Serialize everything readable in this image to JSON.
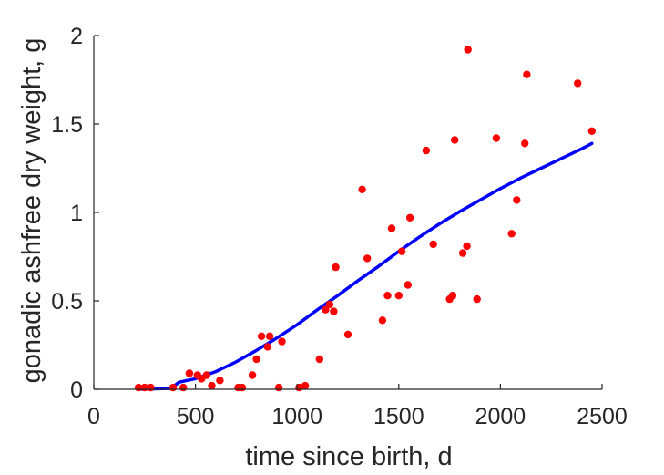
{
  "chart_data": {
    "type": "scatter",
    "xlabel": "time since birth, d",
    "ylabel": "gonadic ashfree dry weight, g",
    "xlim": [
      0,
      2500
    ],
    "ylim": [
      0,
      2
    ],
    "xticks": [
      0,
      500,
      1000,
      1500,
      2000,
      2500
    ],
    "yticks": [
      0,
      0.5,
      1,
      1.5,
      2
    ],
    "xtick_labels": [
      "0",
      "500",
      "1000",
      "1500",
      "2000",
      "2500"
    ],
    "ytick_labels": [
      "0",
      "0.5",
      "1",
      "1.5",
      "2"
    ],
    "grid": false,
    "box": false,
    "colors": {
      "points": "#ff0000",
      "curve": "#0000ff",
      "axes": "#262626"
    },
    "series": [
      {
        "kind": "points",
        "points": [
          [
            220,
            0.01
          ],
          [
            250,
            0.01
          ],
          [
            280,
            0.01
          ],
          [
            390,
            0.01
          ],
          [
            440,
            0.01
          ],
          [
            470,
            0.09
          ],
          [
            510,
            0.08
          ],
          [
            530,
            0.06
          ],
          [
            555,
            0.08
          ],
          [
            580,
            0.02
          ],
          [
            620,
            0.05
          ],
          [
            710,
            0.01
          ],
          [
            730,
            0.01
          ],
          [
            780,
            0.08
          ],
          [
            800,
            0.17
          ],
          [
            825,
            0.3
          ],
          [
            855,
            0.24
          ],
          [
            865,
            0.3
          ],
          [
            910,
            0.01
          ],
          [
            925,
            0.27
          ],
          [
            1010,
            0.01
          ],
          [
            1040,
            0.02
          ],
          [
            1110,
            0.17
          ],
          [
            1140,
            0.45
          ],
          [
            1160,
            0.48
          ],
          [
            1180,
            0.44
          ],
          [
            1190,
            0.69
          ],
          [
            1250,
            0.31
          ],
          [
            1320,
            1.13
          ],
          [
            1345,
            0.74
          ],
          [
            1420,
            0.39
          ],
          [
            1445,
            0.53
          ],
          [
            1465,
            0.91
          ],
          [
            1500,
            0.53
          ],
          [
            1515,
            0.78
          ],
          [
            1545,
            0.59
          ],
          [
            1555,
            0.97
          ],
          [
            1635,
            1.35
          ],
          [
            1670,
            0.82
          ],
          [
            1750,
            0.51
          ],
          [
            1765,
            0.53
          ],
          [
            1775,
            1.41
          ],
          [
            1815,
            0.77
          ],
          [
            1835,
            0.81
          ],
          [
            1840,
            1.92
          ],
          [
            1885,
            0.51
          ],
          [
            1980,
            1.42
          ],
          [
            2055,
            0.88
          ],
          [
            2080,
            1.07
          ],
          [
            2120,
            1.39
          ],
          [
            2130,
            1.78
          ],
          [
            2380,
            1.73
          ],
          [
            2450,
            1.46
          ]
        ]
      },
      {
        "kind": "curve",
        "points": [
          [
            215,
            0
          ],
          [
            380,
            0.005
          ],
          [
            420,
            0.04
          ],
          [
            500,
            0.06
          ],
          [
            600,
            0.1
          ],
          [
            700,
            0.155
          ],
          [
            800,
            0.22
          ],
          [
            900,
            0.29
          ],
          [
            1000,
            0.365
          ],
          [
            1100,
            0.45
          ],
          [
            1200,
            0.53
          ],
          [
            1300,
            0.615
          ],
          [
            1400,
            0.695
          ],
          [
            1500,
            0.78
          ],
          [
            1600,
            0.86
          ],
          [
            1700,
            0.935
          ],
          [
            1800,
            1.005
          ],
          [
            1900,
            1.07
          ],
          [
            2000,
            1.135
          ],
          [
            2100,
            1.195
          ],
          [
            2200,
            1.25
          ],
          [
            2300,
            1.305
          ],
          [
            2400,
            1.36
          ],
          [
            2450,
            1.39
          ]
        ]
      }
    ]
  }
}
